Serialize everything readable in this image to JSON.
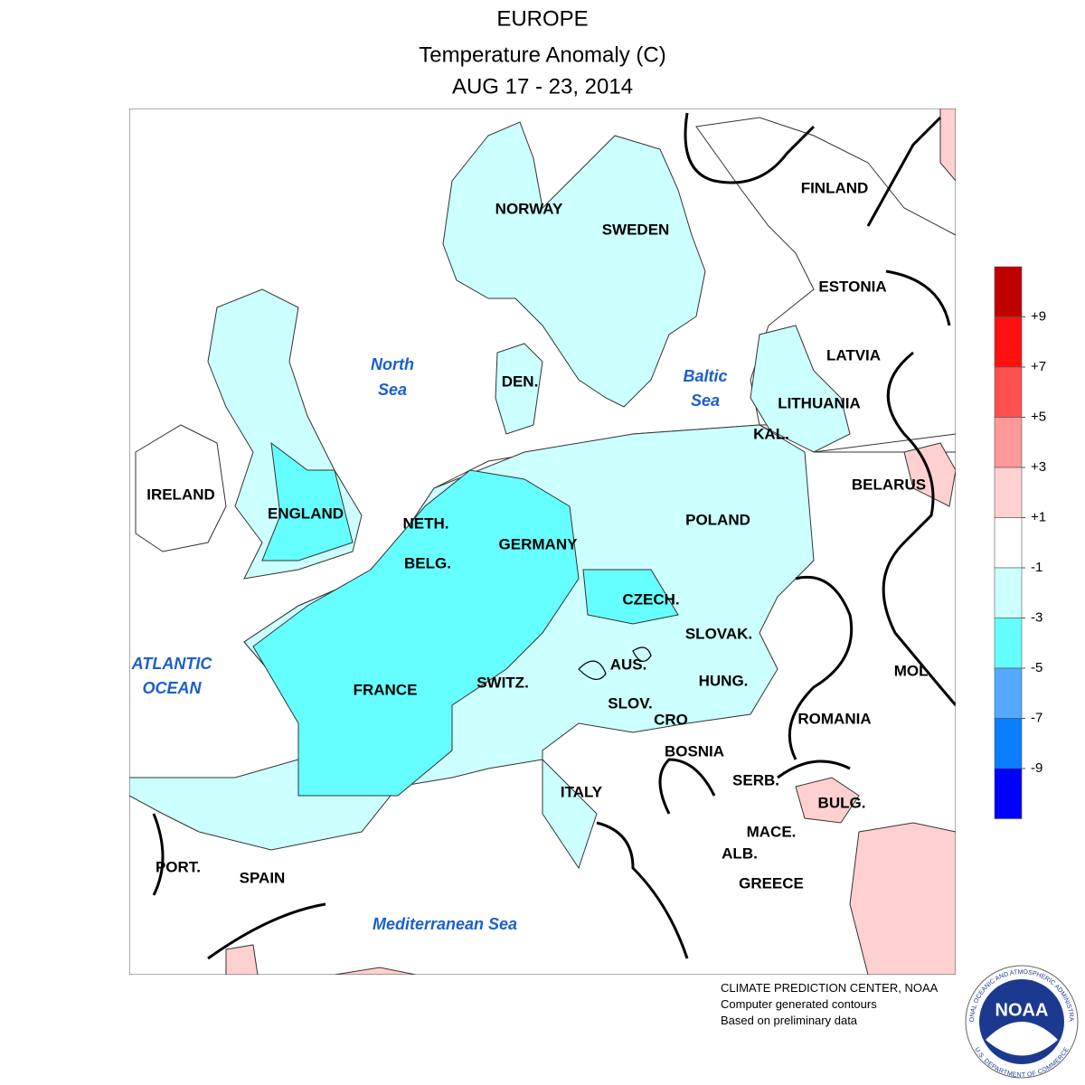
{
  "header": {
    "title": "EUROPE",
    "subtitle": "Temperature Anomaly (C)",
    "period": "AUG 17 - 23, 2014"
  },
  "map": {
    "countries": [
      "NORWAY",
      "SWEDEN",
      "FINLAND",
      "ESTONIA",
      "LATVIA",
      "LITHUANIA",
      "KAL.",
      "BELARUS",
      "POLAND",
      "DEN.",
      "NETH.",
      "GERMANY",
      "BELG.",
      "IRELAND",
      "ENGLAND",
      "CZECH.",
      "SLOVAK.",
      "AUS.",
      "HUNG.",
      "MOL.",
      "ROMANIA",
      "SWITZ.",
      "FRANCE",
      "SLOV.",
      "CRO",
      "BOSNIA",
      "SERB.",
      "ITALY",
      "BULG.",
      "MACE.",
      "ALB.",
      "GREECE",
      "PORT.",
      "SPAIN"
    ],
    "seas": [
      [
        "North",
        "Sea"
      ],
      [
        "Baltic",
        "Sea"
      ],
      [
        "ATLANTIC",
        "OCEAN"
      ],
      [
        "Mediterranean Sea"
      ]
    ]
  },
  "legend": {
    "colors": [
      "#c00000",
      "#ff1010",
      "#ff5050",
      "#ff9999",
      "#ffd0d0",
      "#ffffff",
      "#ccffff",
      "#66ffff",
      "#55a8ff",
      "#0a7cff",
      "#0000ff"
    ],
    "ticks": [
      {
        "value": 9,
        "label": "+9"
      },
      {
        "value": 7,
        "label": "+7"
      },
      {
        "value": 5,
        "label": "+5"
      },
      {
        "value": 3,
        "label": "+3"
      },
      {
        "value": 1,
        "label": "+1"
      },
      -1,
      -3,
      -5,
      -7,
      -9
    ]
  },
  "credits": [
    "CLIMATE PREDICTION CENTER, NOAA",
    "Computer generated contours",
    "Based on preliminary data"
  ],
  "logo": {
    "name": "NOAA",
    "ring_top": "NATIONAL OCEANIC AND ATMOSPHERIC ADMINISTRATION",
    "ring_bottom": "U.S. DEPARTMENT OF COMMERCE"
  }
}
